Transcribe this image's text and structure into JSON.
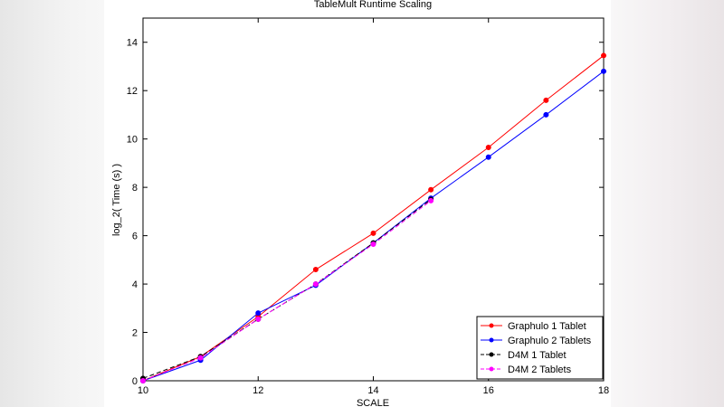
{
  "chart_data": {
    "type": "line",
    "title": "TableMult Runtime Scaling",
    "xlabel": "SCALE",
    "ylabel": "log_2( Time (s) )",
    "xlim": [
      10,
      18
    ],
    "ylim": [
      0,
      15
    ],
    "xticks": [
      10,
      12,
      14,
      16,
      18
    ],
    "yticks": [
      0,
      2,
      4,
      6,
      8,
      10,
      12,
      14
    ],
    "legend_position": "bottom-right",
    "grid": false,
    "series": [
      {
        "name": "Graphulo 1 Tablet",
        "color": "#ff0000",
        "dash": "solid",
        "x": [
          10,
          11,
          12,
          13,
          14,
          15,
          16,
          17,
          18
        ],
        "y": [
          0.0,
          1.0,
          2.65,
          4.6,
          6.1,
          7.9,
          9.65,
          11.6,
          13.45
        ]
      },
      {
        "name": "Graphulo 2 Tablets",
        "color": "#0000ff",
        "dash": "solid",
        "x": [
          10,
          11,
          12,
          13,
          14,
          15,
          16,
          17,
          18
        ],
        "y": [
          0.0,
          0.85,
          2.8,
          3.95,
          5.7,
          7.55,
          9.25,
          11.0,
          12.8
        ]
      },
      {
        "name": "D4M 1 Tablet",
        "color": "#000000",
        "dash": "dashed",
        "x": [
          10,
          11,
          12,
          13,
          14,
          15
        ],
        "y": [
          0.1,
          1.0,
          2.55,
          4.0,
          5.7,
          7.5
        ]
      },
      {
        "name": "D4M 2 Tablets",
        "color": "#ff00ff",
        "dash": "dashed",
        "x": [
          10,
          11,
          12,
          13,
          14,
          15
        ],
        "y": [
          0.0,
          0.95,
          2.55,
          4.0,
          5.65,
          7.45
        ]
      }
    ]
  }
}
